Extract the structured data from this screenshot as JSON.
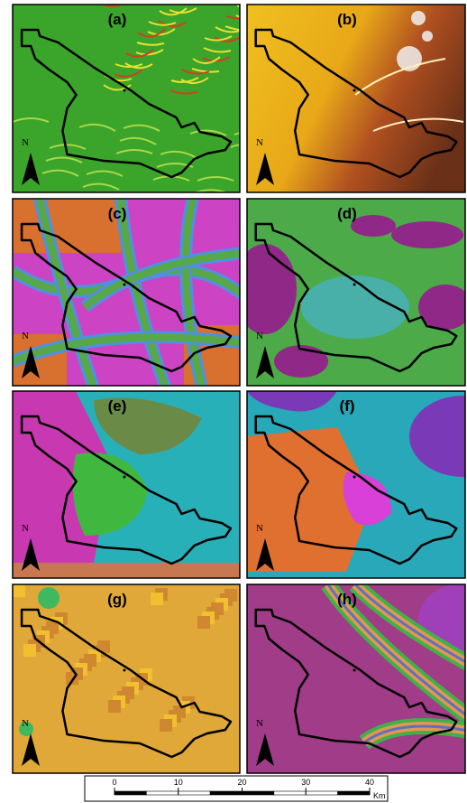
{
  "panels": [
    {
      "label": "(a)"
    },
    {
      "label": "(b)"
    },
    {
      "label": "(c)"
    },
    {
      "label": "(d)"
    },
    {
      "label": "(e)"
    },
    {
      "label": "(f)"
    },
    {
      "label": "(g)"
    },
    {
      "label": "(h)"
    }
  ],
  "north_label": "N",
  "scale_bar": {
    "ticks": [
      0,
      10,
      20,
      30,
      40
    ],
    "unit": "Km"
  }
}
